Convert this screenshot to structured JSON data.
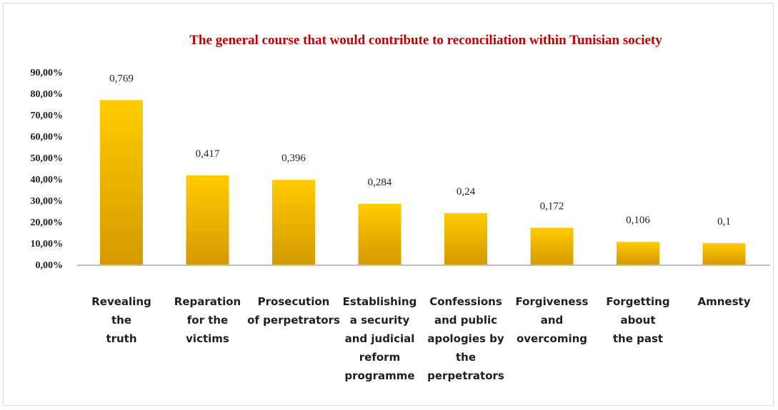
{
  "chart_data": {
    "type": "bar",
    "title": "The general course that would contribute to reconciliation within Tunisian society",
    "xlabel": "",
    "ylabel": "",
    "ylim": [
      0,
      0.9
    ],
    "yticks": [
      "0,00%",
      "10,00%",
      "20,00%",
      "30,00%",
      "40,00%",
      "50,00%",
      "60,00%",
      "70,00%",
      "80,00%",
      "90,00%"
    ],
    "categories": [
      [
        "Revealing",
        "the",
        "truth"
      ],
      [
        "Reparation",
        "for the",
        "victims"
      ],
      [
        "Prosecution",
        "of perpetrators"
      ],
      [
        "Establishing",
        "a security",
        "and judicial",
        "reform",
        "programme"
      ],
      [
        "Confessions",
        "and public",
        "apologies by",
        "the",
        "perpetrators"
      ],
      [
        "Forgiveness",
        "and",
        "overcoming"
      ],
      [
        "Forgetting",
        "about",
        "the past"
      ],
      [
        "Amnesty"
      ]
    ],
    "values": [
      0.769,
      0.417,
      0.396,
      0.284,
      0.24,
      0.172,
      0.106,
      0.1
    ],
    "data_labels": [
      "0,769",
      "0,417",
      "0,396",
      "0,284",
      "0,24",
      "0,172",
      "0,106",
      "0,1"
    ],
    "grid": false,
    "legend": "none",
    "colors": {
      "bar_top": "#ffcc00",
      "bar_bottom": "#d49a00",
      "title": "#c00000",
      "baseline": "#bfbfbf"
    }
  }
}
